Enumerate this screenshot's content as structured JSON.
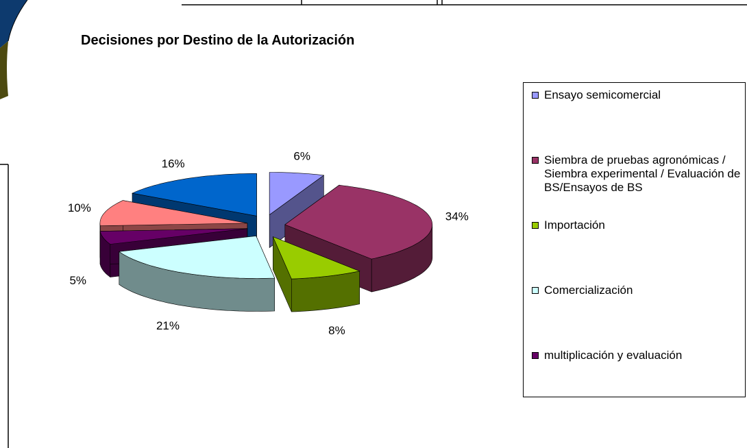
{
  "chart_data": {
    "type": "pie3d",
    "title": "Decisiones por Destino de la Autorización",
    "categories": [
      "Ensayo semicomercial",
      "Siembra de pruebas agronómicas / Siembra experimental / Evaluación de BS/Ensayos de BS",
      "Importación",
      "Comercialización",
      "multiplicación y evaluación",
      null,
      null
    ],
    "values": [
      6,
      34,
      8,
      21,
      5,
      10,
      16
    ],
    "value_labels": [
      "6%",
      "34%",
      "8%",
      "21%",
      "5%",
      "10%",
      "16%"
    ],
    "colors": [
      "#9999ff",
      "#993366",
      "#99cc00",
      "#ccffff",
      "#660066",
      "#ff8080",
      "#0066cc"
    ],
    "legend": "right"
  }
}
